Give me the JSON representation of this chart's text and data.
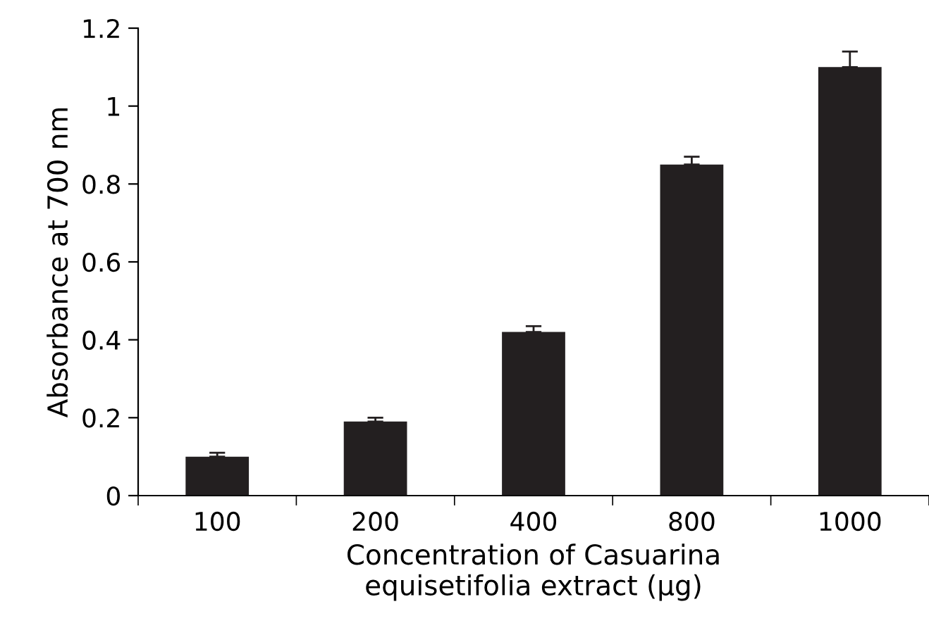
{
  "chart_data": {
    "type": "bar",
    "xlabel": "Concentration of Casuarina\nequisetifolia extract (µg)",
    "ylabel": "Absorbance at 700 nm",
    "categories": [
      "100",
      "200",
      "400",
      "800",
      "1000"
    ],
    "values": [
      0.1,
      0.19,
      0.42,
      0.85,
      1.1
    ],
    "errors": [
      [
        0.1,
        0.11
      ],
      [
        0.19,
        0.2
      ],
      [
        0.42,
        0.435
      ],
      [
        0.85,
        0.87
      ],
      [
        1.1,
        1.14
      ]
    ],
    "color": "#231f20",
    "ylim": [
      0,
      1.2
    ],
    "yticks": [
      0,
      0.2,
      0.4,
      0.6,
      0.8,
      1,
      1.2
    ],
    "grid": false,
    "legend": false
  }
}
